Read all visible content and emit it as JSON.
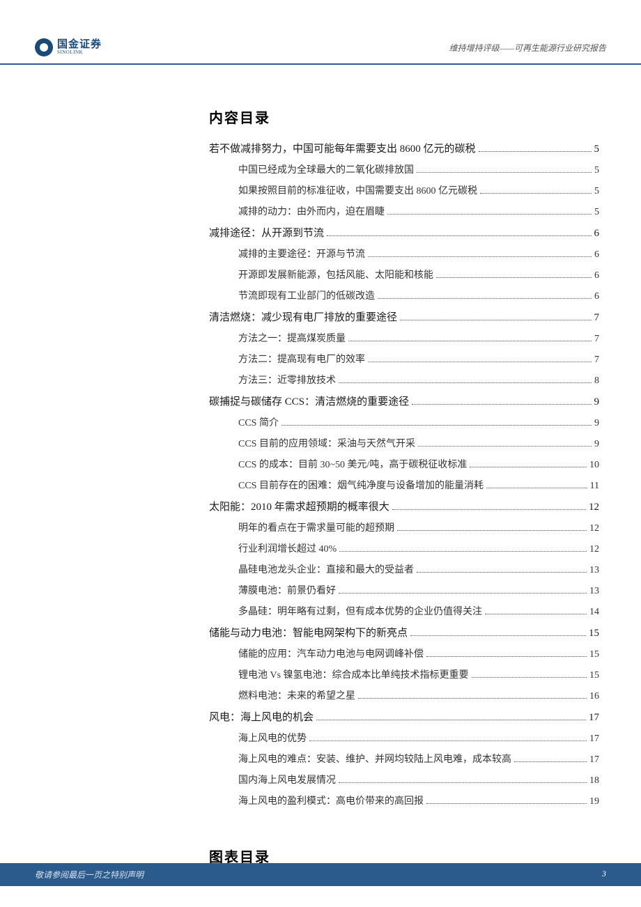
{
  "header": {
    "logo_text": "国金证券",
    "logo_sub": "SINOLINK",
    "right_text": "维持增持评级——可再生能源行业研究报告"
  },
  "toc_title": "内容目录",
  "charts_title": "图表目录",
  "toc": [
    {
      "level": 1,
      "text": "若不做减排努力，中国可能每年需要支出 8600 亿元的碳税",
      "page": "5"
    },
    {
      "level": 2,
      "text": "中国已经成为全球最大的二氧化碳排放国",
      "page": "5"
    },
    {
      "level": 2,
      "text": "如果按照目前的标准征收，中国需要支出 8600 亿元碳税",
      "page": "5"
    },
    {
      "level": 2,
      "text": "减排的动力：由外而内，迫在眉睫",
      "page": "5"
    },
    {
      "level": 1,
      "text": "减排途径：从开源到节流",
      "page": "6"
    },
    {
      "level": 2,
      "text": "减排的主要途径：开源与节流",
      "page": "6"
    },
    {
      "level": 2,
      "text": "开源即发展新能源，包括风能、太阳能和核能",
      "page": "6"
    },
    {
      "level": 2,
      "text": "节流即现有工业部门的低碳改造",
      "page": "6"
    },
    {
      "level": 1,
      "text": "清洁燃烧：减少现有电厂排放的重要途径",
      "page": "7"
    },
    {
      "level": 2,
      "text": "方法之一：提高煤炭质量",
      "page": "7"
    },
    {
      "level": 2,
      "text": "方法二：提高现有电厂的效率",
      "page": "7"
    },
    {
      "level": 2,
      "text": "方法三：近零排放技术",
      "page": "8"
    },
    {
      "level": 1,
      "text": "碳捕捉与碳储存 CCS：清洁燃烧的重要途径",
      "page": "9"
    },
    {
      "level": 2,
      "text": "CCS 简介",
      "page": "9"
    },
    {
      "level": 2,
      "text": "CCS 目前的应用领域：采油与天然气开采",
      "page": "9"
    },
    {
      "level": 2,
      "text": "CCS 的成本：目前 30~50 美元/吨，高于碳税征收标准",
      "page": "10"
    },
    {
      "level": 2,
      "text": "CCS 目前存在的困难：烟气纯净度与设备增加的能量消耗",
      "page": "11"
    },
    {
      "level": 1,
      "text": "太阳能：2010 年需求超预期的概率很大",
      "page": "12"
    },
    {
      "level": 2,
      "text": "明年的看点在于需求量可能的超预期",
      "page": "12"
    },
    {
      "level": 2,
      "text": "行业利润增长超过 40%",
      "page": "12"
    },
    {
      "level": 2,
      "text": "晶硅电池龙头企业：直接和最大的受益者",
      "page": "13"
    },
    {
      "level": 2,
      "text": "薄膜电池：前景仍看好",
      "page": "13"
    },
    {
      "level": 2,
      "text": "多晶硅：明年略有过剩，但有成本优势的企业仍值得关注",
      "page": "14"
    },
    {
      "level": 1,
      "text": "储能与动力电池：智能电网架构下的新亮点",
      "page": "15"
    },
    {
      "level": 2,
      "text": "储能的应用：汽车动力电池与电网调峰补偿",
      "page": "15"
    },
    {
      "level": 2,
      "text": "锂电池 Vs 镍氢电池：综合成本比单纯技术指标更重要",
      "page": "15"
    },
    {
      "level": 2,
      "text": "燃料电池：未来的希望之星",
      "page": "16"
    },
    {
      "level": 1,
      "text": "风电：海上风电的机会",
      "page": "17"
    },
    {
      "level": 2,
      "text": "海上风电的优势",
      "page": "17"
    },
    {
      "level": 2,
      "text": "海上风电的难点：安装、维护、并网均较陆上风电难，成本较高",
      "page": "17"
    },
    {
      "level": 2,
      "text": "国内海上风电发展情况",
      "page": "18"
    },
    {
      "level": 2,
      "text": "海上风电的盈利模式：高电价带来的高回报",
      "page": "19"
    }
  ],
  "footer": {
    "left": "敬请参阅最后一页之特别声明",
    "page": "3"
  }
}
